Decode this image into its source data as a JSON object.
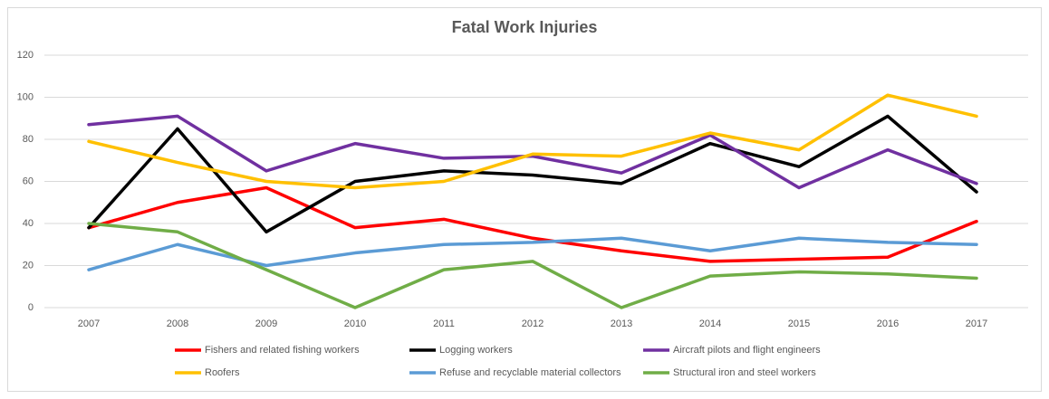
{
  "chart_data": {
    "type": "line",
    "title": "Fatal Work Injuries",
    "categories": [
      "2007",
      "2008",
      "2009",
      "2010",
      "2011",
      "2012",
      "2013",
      "2014",
      "2015",
      "2016",
      "2017"
    ],
    "series": [
      {
        "name": "Fishers and related fishing workers",
        "color": "#ff0000",
        "values": [
          38,
          50,
          57,
          38,
          42,
          33,
          27,
          22,
          23,
          24,
          41
        ]
      },
      {
        "name": "Logging workers",
        "color": "#000000",
        "values": [
          38,
          85,
          36,
          60,
          65,
          63,
          59,
          78,
          67,
          91,
          55
        ]
      },
      {
        "name": "Aircraft pilots and flight engineers",
        "color": "#7030a0",
        "values": [
          87,
          91,
          65,
          78,
          71,
          72,
          64,
          82,
          57,
          75,
          59
        ]
      },
      {
        "name": "Roofers",
        "color": "#ffc000",
        "values": [
          79,
          69,
          60,
          57,
          60,
          73,
          72,
          83,
          75,
          101,
          91
        ]
      },
      {
        "name": "Refuse and recyclable material collectors",
        "color": "#5b9bd5",
        "values": [
          18,
          30,
          20,
          26,
          30,
          31,
          33,
          27,
          33,
          31,
          30
        ]
      },
      {
        "name": "Structural iron and steel workers",
        "color": "#70ad47",
        "values": [
          40,
          36,
          18,
          0,
          18,
          22,
          0,
          15,
          17,
          16,
          14
        ]
      }
    ],
    "ylim": [
      0,
      120
    ],
    "yticks": [
      0,
      20,
      40,
      60,
      80,
      100,
      120
    ],
    "grid": true,
    "legend": "bottom"
  }
}
